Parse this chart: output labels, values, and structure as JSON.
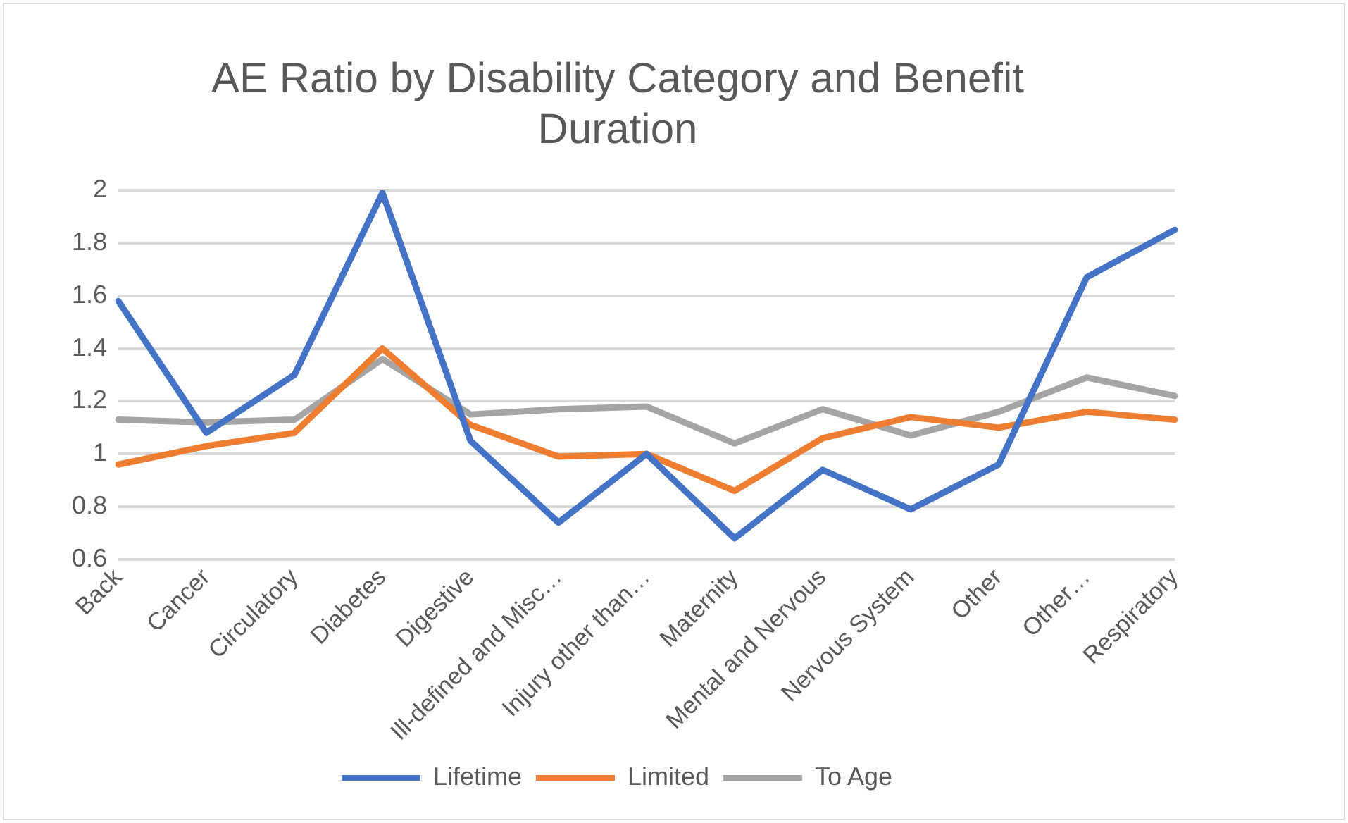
{
  "chart_data": {
    "type": "line",
    "title": "AE Ratio by Disability Category and Benefit Duration",
    "categories": [
      "Back",
      "Cancer",
      "Circulatory",
      "Diabetes",
      "Digestive",
      "Ill-defined and Misc…",
      "Injury other than…",
      "Maternity",
      "Mental and Nervous",
      "Nervous System",
      "Other",
      "Other…",
      "Respiratory"
    ],
    "series": [
      {
        "name": "Lifetime",
        "color": "#4472c4",
        "values": [
          1.58,
          1.08,
          1.3,
          1.99,
          1.05,
          0.74,
          1.0,
          0.68,
          0.94,
          0.79,
          0.96,
          1.67,
          1.85
        ]
      },
      {
        "name": "Limited",
        "color": "#ed7d31",
        "values": [
          0.96,
          1.03,
          1.08,
          1.4,
          1.11,
          0.99,
          1.0,
          0.86,
          1.06,
          1.14,
          1.1,
          1.16,
          1.13
        ]
      },
      {
        "name": "To Age",
        "color": "#a5a5a5",
        "values": [
          1.13,
          1.12,
          1.13,
          1.36,
          1.15,
          1.17,
          1.18,
          1.04,
          1.17,
          1.07,
          1.16,
          1.29,
          1.22
        ]
      }
    ],
    "ylim": [
      0.6,
      2
    ],
    "yticks": [
      0.6,
      0.8,
      1,
      1.2,
      1.4,
      1.6,
      1.8,
      2
    ],
    "grid": "y",
    "legend": "bottom",
    "marker": "none",
    "line_style": "solid"
  }
}
